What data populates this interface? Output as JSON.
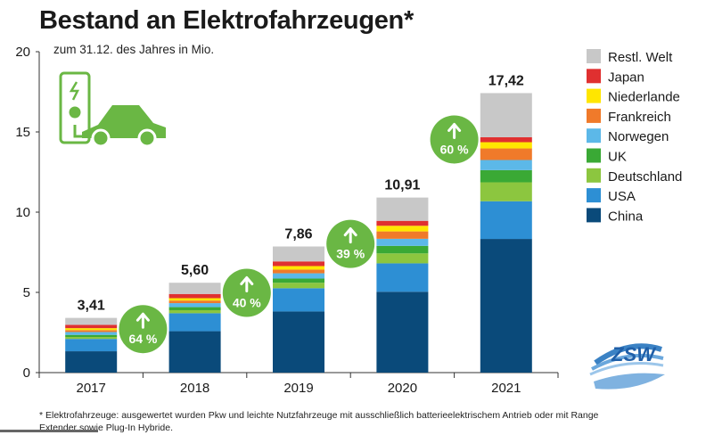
{
  "title": "Bestand an Elektrofahrzeugen*",
  "subtitle": "zum 31.12. des Jahres in Mio.",
  "footnote": "* Elektrofahrzeuge: ausgewertet wurden Pkw und leichte Nutzfahrzeuge mit ausschließlich batterieelektrischem Antrieb oder mit Range Extender sowie Plug-In Hybride.",
  "logo_text": "ZSW",
  "chart_data": {
    "type": "bar",
    "stacked": true,
    "unit": "Mio.",
    "categories": [
      "2017",
      "2018",
      "2019",
      "2020",
      "2021"
    ],
    "totals": [
      3.41,
      5.6,
      7.86,
      10.91,
      17.42
    ],
    "total_labels": [
      "3,41",
      "5,60",
      "7,86",
      "10,91",
      "17,42"
    ],
    "growth": [
      {
        "between": [
          "2017",
          "2018"
        ],
        "label": "64 %"
      },
      {
        "between": [
          "2018",
          "2019"
        ],
        "label": "40 %"
      },
      {
        "between": [
          "2019",
          "2020"
        ],
        "label": "39 %"
      },
      {
        "between": [
          "2020",
          "2021"
        ],
        "label": "60 %"
      }
    ],
    "ylim": [
      0,
      20
    ],
    "yticks": [
      0,
      5,
      10,
      15,
      20
    ],
    "grid": false,
    "legend_position": "right",
    "series": [
      {
        "name": "China",
        "color": "#0a4a7a",
        "values": [
          1.33,
          2.58,
          3.81,
          5.04,
          8.33
        ]
      },
      {
        "name": "USA",
        "color": "#2d8fd4",
        "values": [
          0.77,
          1.12,
          1.45,
          1.77,
          2.35
        ]
      },
      {
        "name": "Deutschland",
        "color": "#8cc63f",
        "values": [
          0.12,
          0.19,
          0.34,
          0.62,
          1.18
        ]
      },
      {
        "name": "UK",
        "color": "#3aa935",
        "values": [
          0.13,
          0.19,
          0.26,
          0.47,
          0.76
        ]
      },
      {
        "name": "Norwegen",
        "color": "#5cb8e8",
        "values": [
          0.18,
          0.25,
          0.33,
          0.44,
          0.63
        ]
      },
      {
        "name": "Frankreich",
        "color": "#f07a2a",
        "values": [
          0.12,
          0.16,
          0.23,
          0.46,
          0.72
        ]
      },
      {
        "name": "Niederlande",
        "color": "#ffe600",
        "values": [
          0.12,
          0.15,
          0.22,
          0.35,
          0.39
        ]
      },
      {
        "name": "Japan",
        "color": "#e03030",
        "values": [
          0.21,
          0.26,
          0.29,
          0.31,
          0.31
        ]
      },
      {
        "name": "Restl. Welt",
        "color": "#c8c8c8",
        "values": [
          0.43,
          0.7,
          0.93,
          1.45,
          2.75
        ]
      }
    ],
    "colors": {
      "accent_green": "#6ab744",
      "text": "#1a1a1a"
    }
  }
}
